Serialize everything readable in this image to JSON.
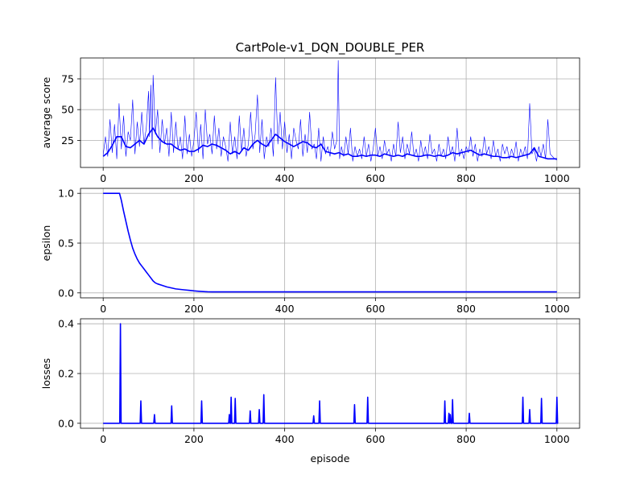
{
  "figure": {
    "title": "CartPole-v1_DQN_DOUBLE_PER",
    "line_color": "#0000ff",
    "grid": true
  },
  "chart_data": [
    {
      "type": "line",
      "id": "score",
      "ylabel": "average score",
      "xlabel": "",
      "xlim": [
        -50,
        1050
      ],
      "ylim": [
        3,
        92
      ],
      "xticks": [
        0,
        200,
        400,
        600,
        800,
        1000
      ],
      "yticks": [
        25,
        50,
        75
      ],
      "series": [
        {
          "role": "raw",
          "x": [
            0,
            5,
            10,
            15,
            20,
            25,
            30,
            35,
            40,
            45,
            50,
            55,
            60,
            65,
            70,
            75,
            80,
            85,
            90,
            95,
            100,
            102,
            105,
            108,
            110,
            115,
            120,
            125,
            130,
            135,
            140,
            145,
            150,
            155,
            160,
            165,
            170,
            175,
            180,
            185,
            190,
            195,
            200,
            205,
            210,
            215,
            220,
            225,
            230,
            235,
            240,
            245,
            250,
            255,
            260,
            265,
            270,
            275,
            280,
            285,
            290,
            295,
            300,
            305,
            310,
            315,
            320,
            325,
            330,
            335,
            340,
            345,
            350,
            355,
            360,
            365,
            370,
            375,
            380,
            385,
            390,
            395,
            400,
            405,
            410,
            415,
            420,
            425,
            430,
            435,
            440,
            445,
            450,
            455,
            460,
            465,
            470,
            475,
            480,
            485,
            490,
            495,
            500,
            505,
            510,
            515,
            518,
            521,
            525,
            530,
            535,
            540,
            545,
            550,
            555,
            560,
            565,
            570,
            575,
            580,
            585,
            590,
            595,
            600,
            605,
            610,
            615,
            620,
            625,
            630,
            635,
            640,
            645,
            650,
            655,
            660,
            665,
            670,
            675,
            680,
            685,
            690,
            695,
            700,
            705,
            710,
            715,
            720,
            725,
            730,
            735,
            740,
            745,
            750,
            755,
            760,
            765,
            770,
            775,
            780,
            785,
            790,
            795,
            800,
            805,
            810,
            815,
            820,
            825,
            830,
            835,
            840,
            845,
            850,
            855,
            860,
            865,
            870,
            875,
            880,
            885,
            890,
            895,
            900,
            905,
            910,
            915,
            920,
            925,
            930,
            935,
            940,
            945,
            950,
            955,
            960,
            965,
            970,
            975,
            980,
            985,
            990,
            995,
            1000
          ],
          "y": [
            13,
            28,
            12,
            42,
            15,
            38,
            10,
            55,
            18,
            45,
            12,
            32,
            25,
            58,
            14,
            40,
            20,
            48,
            22,
            35,
            65,
            28,
            70,
            18,
            78,
            30,
            50,
            15,
            42,
            22,
            35,
            12,
            48,
            15,
            40,
            18,
            28,
            10,
            45,
            14,
            30,
            12,
            25,
            48,
            15,
            38,
            10,
            50,
            22,
            30,
            14,
            45,
            18,
            35,
            12,
            28,
            20,
            8,
            40,
            14,
            28,
            10,
            45,
            16,
            35,
            12,
            22,
            48,
            18,
            30,
            62,
            15,
            42,
            10,
            28,
            20,
            35,
            12,
            76,
            22,
            48,
            18,
            40,
            15,
            30,
            10,
            35,
            25,
            18,
            42,
            12,
            30,
            15,
            48,
            18,
            22,
            10,
            35,
            8,
            28,
            14,
            20,
            12,
            32,
            18,
            25,
            90,
            10,
            20,
            12,
            28,
            14,
            35,
            8,
            20,
            12,
            18,
            10,
            28,
            12,
            22,
            8,
            18,
            35,
            12,
            20,
            10,
            25,
            14,
            18,
            8,
            22,
            12,
            40,
            15,
            28,
            10,
            22,
            14,
            32,
            12,
            18,
            8,
            25,
            12,
            20,
            10,
            30,
            14,
            18,
            8,
            22,
            12,
            18,
            10,
            28,
            14,
            20,
            8,
            35,
            12,
            18,
            10,
            20,
            15,
            28,
            12,
            22,
            8,
            18,
            12,
            28,
            14,
            20,
            10,
            25,
            12,
            18,
            8,
            22,
            14,
            20,
            10,
            18,
            12,
            24,
            8,
            18,
            12,
            20,
            10,
            55,
            14,
            18,
            8,
            20,
            12,
            22,
            10,
            42,
            14,
            12,
            10,
            9
          ]
        },
        {
          "role": "moving-average",
          "x": [
            0,
            10,
            20,
            30,
            40,
            50,
            60,
            70,
            80,
            90,
            100,
            110,
            120,
            130,
            140,
            150,
            160,
            170,
            180,
            190,
            200,
            210,
            220,
            230,
            240,
            250,
            260,
            270,
            280,
            290,
            300,
            310,
            320,
            330,
            340,
            350,
            360,
            370,
            380,
            390,
            400,
            410,
            420,
            430,
            440,
            450,
            460,
            470,
            480,
            490,
            500,
            510,
            520,
            530,
            540,
            550,
            560,
            570,
            580,
            590,
            600,
            610,
            620,
            630,
            640,
            650,
            660,
            670,
            680,
            690,
            700,
            710,
            720,
            730,
            740,
            750,
            760,
            770,
            780,
            790,
            800,
            810,
            820,
            830,
            840,
            850,
            860,
            870,
            880,
            890,
            900,
            910,
            920,
            930,
            940,
            950,
            960,
            970,
            980,
            990,
            1000
          ],
          "y": [
            12,
            15,
            21,
            28,
            28,
            20,
            19,
            22,
            25,
            22,
            30,
            35,
            28,
            24,
            22,
            22,
            19,
            17,
            18,
            16,
            16,
            18,
            21,
            20,
            22,
            21,
            19,
            17,
            14,
            16,
            14,
            19,
            17,
            22,
            25,
            22,
            20,
            25,
            30,
            27,
            24,
            22,
            20,
            22,
            24,
            23,
            20,
            19,
            22,
            16,
            15,
            14,
            15,
            13,
            14,
            12,
            12,
            13,
            12,
            13,
            13,
            12,
            14,
            13,
            12,
            13,
            12,
            14,
            13,
            12,
            12,
            13,
            13,
            12,
            13,
            12,
            13,
            15,
            14,
            15,
            16,
            17,
            15,
            13,
            14,
            13,
            12,
            12,
            11,
            11,
            12,
            11,
            12,
            13,
            14,
            19,
            12,
            11,
            10,
            10,
            10
          ]
        }
      ]
    },
    {
      "type": "line",
      "id": "epsilon",
      "ylabel": "epsilon",
      "xlabel": "",
      "xlim": [
        -50,
        1050
      ],
      "ylim": [
        -0.05,
        1.05
      ],
      "xticks": [
        0,
        200,
        400,
        600,
        800,
        1000
      ],
      "yticks": [
        0.0,
        0.5,
        1.0
      ],
      "ytick_labels": [
        "0.0",
        "0.5",
        "1.0"
      ],
      "series": [
        {
          "x": [
            0,
            36,
            40,
            45,
            50,
            55,
            60,
            65,
            70,
            75,
            80,
            85,
            90,
            95,
            100,
            105,
            110,
            115,
            120,
            130,
            140,
            150,
            160,
            170,
            180,
            190,
            200,
            210,
            220,
            230,
            240,
            250,
            1000
          ],
          "y": [
            1.0,
            1.0,
            0.93,
            0.82,
            0.72,
            0.62,
            0.53,
            0.45,
            0.39,
            0.34,
            0.3,
            0.27,
            0.24,
            0.21,
            0.18,
            0.15,
            0.12,
            0.1,
            0.09,
            0.075,
            0.06,
            0.05,
            0.04,
            0.035,
            0.03,
            0.025,
            0.02,
            0.016,
            0.013,
            0.011,
            0.01,
            0.01,
            0.01
          ]
        }
      ]
    },
    {
      "type": "line",
      "id": "losses",
      "ylabel": "losses",
      "xlabel": "episode",
      "xlim": [
        -50,
        1050
      ],
      "ylim": [
        -0.02,
        0.42
      ],
      "xticks": [
        0,
        200,
        400,
        600,
        800,
        1000
      ],
      "yticks": [
        0.0,
        0.2,
        0.4
      ],
      "ytick_labels": [
        "0.0",
        "0.2",
        "0.4"
      ],
      "spikes": [
        {
          "x": 38,
          "y": 0.4
        },
        {
          "x": 83,
          "y": 0.09
        },
        {
          "x": 113,
          "y": 0.035
        },
        {
          "x": 151,
          "y": 0.07
        },
        {
          "x": 217,
          "y": 0.09
        },
        {
          "x": 278,
          "y": 0.035
        },
        {
          "x": 282,
          "y": 0.105
        },
        {
          "x": 291,
          "y": 0.1
        },
        {
          "x": 324,
          "y": 0.05
        },
        {
          "x": 344,
          "y": 0.055
        },
        {
          "x": 354,
          "y": 0.115
        },
        {
          "x": 464,
          "y": 0.03
        },
        {
          "x": 477,
          "y": 0.09
        },
        {
          "x": 554,
          "y": 0.075
        },
        {
          "x": 583,
          "y": 0.105
        },
        {
          "x": 753,
          "y": 0.09
        },
        {
          "x": 762,
          "y": 0.04
        },
        {
          "x": 765,
          "y": 0.035
        },
        {
          "x": 770,
          "y": 0.095
        },
        {
          "x": 807,
          "y": 0.04
        },
        {
          "x": 925,
          "y": 0.105
        },
        {
          "x": 940,
          "y": 0.055
        },
        {
          "x": 966,
          "y": 0.1
        },
        {
          "x": 1000,
          "y": 0.105
        }
      ]
    }
  ]
}
